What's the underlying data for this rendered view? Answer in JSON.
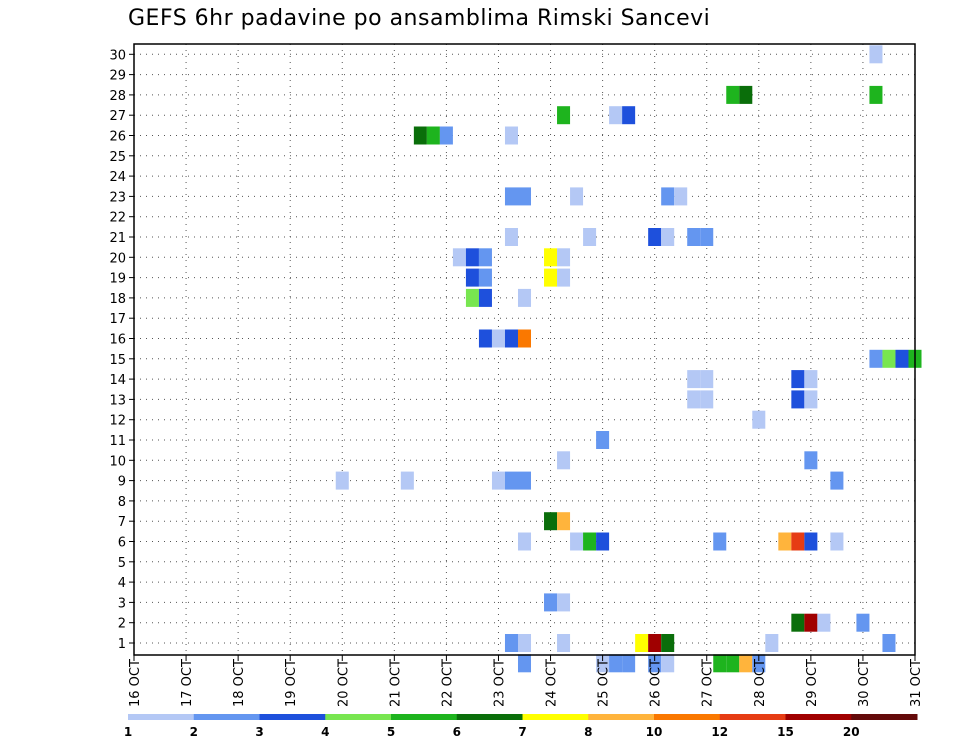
{
  "chart_data": {
    "type": "heatmap",
    "title": "GEFS 6hr padavine po ansamblima Rimski Sancevi",
    "xlabel": "",
    "ylabel": "",
    "x_ticks": [
      "16 OCT",
      "17 OCT",
      "18 OCT",
      "19 OCT",
      "20 OCT",
      "21 OCT",
      "22 OCT",
      "23 OCT",
      "24 OCT",
      "25 OCT",
      "26 OCT",
      "27 OCT",
      "28 OCT",
      "29 OCT",
      "30 OCT",
      "31 OCT"
    ],
    "x_range_days": [
      16,
      31
    ],
    "y_ticks": [
      1,
      2,
      3,
      4,
      5,
      6,
      7,
      8,
      9,
      10,
      11,
      12,
      13,
      14,
      15,
      16,
      17,
      18,
      19,
      20,
      21,
      22,
      23,
      24,
      25,
      26,
      27,
      28,
      29,
      30
    ],
    "grid": true,
    "legend_placement": "bottom",
    "legend": {
      "labels": [
        "1",
        "2",
        "3",
        "4",
        "5",
        "6",
        "7",
        "8",
        "10",
        "12",
        "15",
        "20"
      ],
      "colors": [
        "#b4c8f5",
        "#6496f0",
        "#1e50dc",
        "#78e650",
        "#1eb41e",
        "#0a6e0a",
        "#ffff00",
        "#ffb43c",
        "#fa7800",
        "#e63c14",
        "#a00000",
        "#640a0a"
      ]
    },
    "cell_color_scale": [
      "#b4c8f5",
      "#6496f0",
      "#1e50dc",
      "#78e650",
      "#1eb41e",
      "#0a6e0a",
      "#ffff00",
      "#ffb43c",
      "#fa7800",
      "#e63c14",
      "#a00000"
    ],
    "cells": [
      {
        "day": 30.25,
        "member": 30,
        "level": 0
      },
      {
        "day": 27.5,
        "member": 28,
        "level": 4
      },
      {
        "day": 27.75,
        "member": 28,
        "level": 5
      },
      {
        "day": 30.25,
        "member": 28,
        "level": 4
      },
      {
        "day": 24.25,
        "member": 27,
        "level": 4
      },
      {
        "day": 25.25,
        "member": 27,
        "level": 0
      },
      {
        "day": 25.5,
        "member": 27,
        "level": 2
      },
      {
        "day": 21.5,
        "member": 26,
        "level": 5
      },
      {
        "day": 21.75,
        "member": 26,
        "level": 4
      },
      {
        "day": 22.0,
        "member": 26,
        "level": 1
      },
      {
        "day": 23.25,
        "member": 26,
        "level": 0
      },
      {
        "day": 23.25,
        "member": 23,
        "level": 1
      },
      {
        "day": 23.5,
        "member": 23,
        "level": 1
      },
      {
        "day": 24.5,
        "member": 23,
        "level": 0
      },
      {
        "day": 26.25,
        "member": 23,
        "level": 1
      },
      {
        "day": 26.5,
        "member": 23,
        "level": 0
      },
      {
        "day": 23.25,
        "member": 21,
        "level": 0
      },
      {
        "day": 24.75,
        "member": 21,
        "level": 0
      },
      {
        "day": 26.0,
        "member": 21,
        "level": 2
      },
      {
        "day": 26.25,
        "member": 21,
        "level": 0
      },
      {
        "day": 26.75,
        "member": 21,
        "level": 1
      },
      {
        "day": 27.0,
        "member": 21,
        "level": 1
      },
      {
        "day": 22.25,
        "member": 20,
        "level": 0
      },
      {
        "day": 22.5,
        "member": 20,
        "level": 2
      },
      {
        "day": 22.75,
        "member": 20,
        "level": 1
      },
      {
        "day": 24.0,
        "member": 20,
        "level": 6
      },
      {
        "day": 24.25,
        "member": 20,
        "level": 0
      },
      {
        "day": 22.5,
        "member": 19,
        "level": 2
      },
      {
        "day": 22.75,
        "member": 19,
        "level": 1
      },
      {
        "day": 24.0,
        "member": 19,
        "level": 6
      },
      {
        "day": 24.25,
        "member": 19,
        "level": 0
      },
      {
        "day": 22.5,
        "member": 18,
        "level": 3
      },
      {
        "day": 22.75,
        "member": 18,
        "level": 2
      },
      {
        "day": 23.5,
        "member": 18,
        "level": 0
      },
      {
        "day": 22.75,
        "member": 16,
        "level": 2
      },
      {
        "day": 23.0,
        "member": 16,
        "level": 0
      },
      {
        "day": 23.25,
        "member": 16,
        "level": 2
      },
      {
        "day": 23.5,
        "member": 16,
        "level": 8
      },
      {
        "day": 30.25,
        "member": 15,
        "level": 1
      },
      {
        "day": 30.5,
        "member": 15,
        "level": 3
      },
      {
        "day": 30.75,
        "member": 15,
        "level": 2
      },
      {
        "day": 31.0,
        "member": 15,
        "level": 4
      },
      {
        "day": 26.75,
        "member": 14,
        "level": 0
      },
      {
        "day": 27.0,
        "member": 14,
        "level": 0
      },
      {
        "day": 28.75,
        "member": 14,
        "level": 2
      },
      {
        "day": 29.0,
        "member": 14,
        "level": 0
      },
      {
        "day": 26.75,
        "member": 13,
        "level": 0
      },
      {
        "day": 27.0,
        "member": 13,
        "level": 0
      },
      {
        "day": 28.75,
        "member": 13,
        "level": 2
      },
      {
        "day": 29.0,
        "member": 13,
        "level": 0
      },
      {
        "day": 28.0,
        "member": 12,
        "level": 0
      },
      {
        "day": 25.0,
        "member": 11,
        "level": 1
      },
      {
        "day": 24.25,
        "member": 10,
        "level": 0
      },
      {
        "day": 29.0,
        "member": 10,
        "level": 1
      },
      {
        "day": 20.0,
        "member": 9,
        "level": 0
      },
      {
        "day": 21.25,
        "member": 9,
        "level": 0
      },
      {
        "day": 23.0,
        "member": 9,
        "level": 0
      },
      {
        "day": 23.25,
        "member": 9,
        "level": 1
      },
      {
        "day": 23.5,
        "member": 9,
        "level": 1
      },
      {
        "day": 29.5,
        "member": 9,
        "level": 1
      },
      {
        "day": 24.0,
        "member": 7,
        "level": 5
      },
      {
        "day": 24.25,
        "member": 7,
        "level": 7
      },
      {
        "day": 23.5,
        "member": 6,
        "level": 0
      },
      {
        "day": 24.5,
        "member": 6,
        "level": 0
      },
      {
        "day": 24.75,
        "member": 6,
        "level": 4
      },
      {
        "day": 25.0,
        "member": 6,
        "level": 2
      },
      {
        "day": 27.25,
        "member": 6,
        "level": 1
      },
      {
        "day": 28.5,
        "member": 6,
        "level": 7
      },
      {
        "day": 28.75,
        "member": 6,
        "level": 9
      },
      {
        "day": 29.0,
        "member": 6,
        "level": 2
      },
      {
        "day": 29.5,
        "member": 6,
        "level": 0
      },
      {
        "day": 24.0,
        "member": 3,
        "level": 1
      },
      {
        "day": 24.25,
        "member": 3,
        "level": 0
      },
      {
        "day": 28.75,
        "member": 2,
        "level": 5
      },
      {
        "day": 29.0,
        "member": 2,
        "level": 10
      },
      {
        "day": 29.25,
        "member": 2,
        "level": 0
      },
      {
        "day": 30.0,
        "member": 2,
        "level": 1
      },
      {
        "day": 23.25,
        "member": 1,
        "level": 1
      },
      {
        "day": 23.5,
        "member": 1,
        "level": 0
      },
      {
        "day": 24.25,
        "member": 1,
        "level": 0
      },
      {
        "day": 25.75,
        "member": 1,
        "level": 6
      },
      {
        "day": 26.0,
        "member": 1,
        "level": 10
      },
      {
        "day": 26.25,
        "member": 1,
        "level": 5
      },
      {
        "day": 28.25,
        "member": 1,
        "level": 0
      },
      {
        "day": 30.5,
        "member": 1,
        "level": 1
      },
      {
        "day": 23.5,
        "member": 0,
        "level": 1
      },
      {
        "day": 25.0,
        "member": 0,
        "level": 0
      },
      {
        "day": 25.25,
        "member": 0,
        "level": 1
      },
      {
        "day": 25.5,
        "member": 0,
        "level": 1
      },
      {
        "day": 26.0,
        "member": 0,
        "level": 1
      },
      {
        "day": 26.25,
        "member": 0,
        "level": 0
      },
      {
        "day": 27.25,
        "member": 0,
        "level": 4
      },
      {
        "day": 27.5,
        "member": 0,
        "level": 4
      },
      {
        "day": 27.75,
        "member": 0,
        "level": 7
      },
      {
        "day": 28.0,
        "member": 0,
        "level": 1
      }
    ]
  }
}
